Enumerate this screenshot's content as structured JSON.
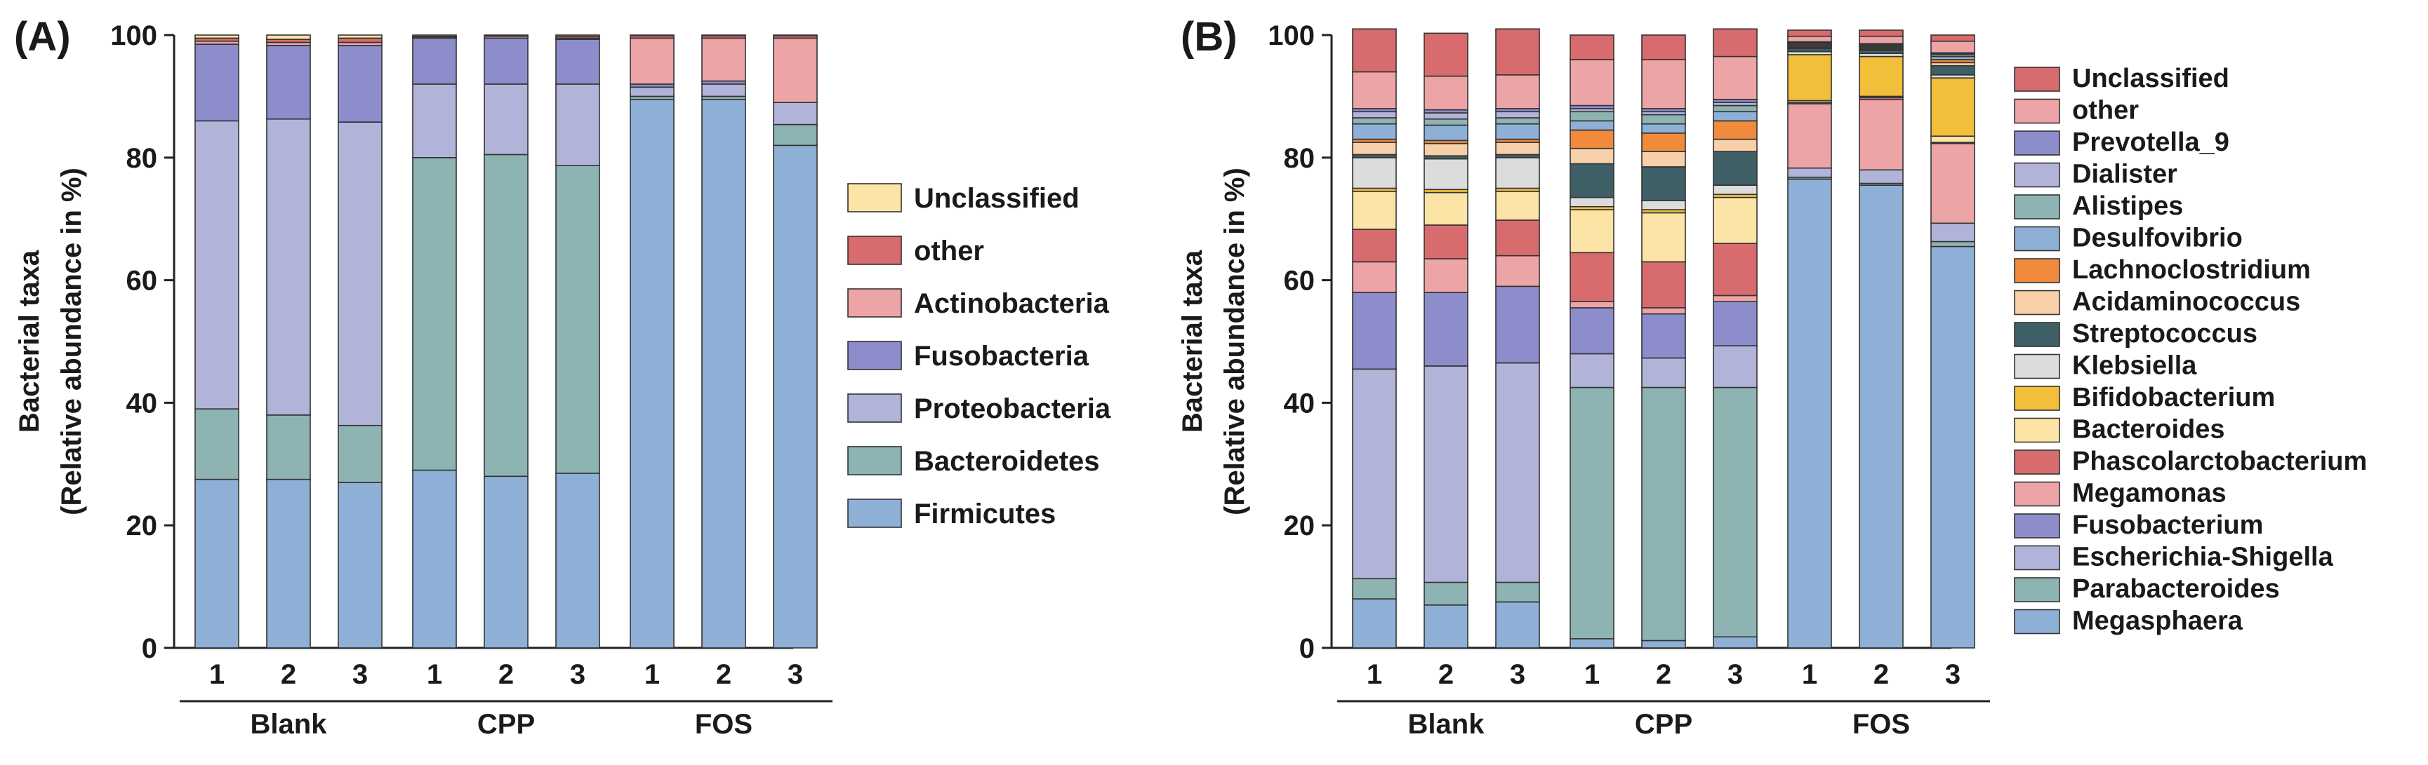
{
  "chart_data": [
    {
      "type": "bar",
      "stacked": true,
      "panel": "(A)",
      "ylabel": [
        "Bacterial taxa",
        "(Relative abundance in %)"
      ],
      "ylim": [
        0,
        100
      ],
      "yticks": [
        0,
        20,
        40,
        60,
        80,
        100
      ],
      "categories": [
        "1",
        "2",
        "3",
        "1",
        "2",
        "3",
        "1",
        "2",
        "3"
      ],
      "groups": [
        {
          "label": "Blank",
          "categories": [
            "1",
            "2",
            "3"
          ]
        },
        {
          "label": "CPP",
          "categories": [
            "1",
            "2",
            "3"
          ]
        },
        {
          "label": "FOS",
          "categories": [
            "1",
            "2",
            "3"
          ]
        }
      ],
      "series": [
        {
          "name": "Firmicutes",
          "color": "#8fb0d6",
          "values": [
            27.5,
            27.5,
            27,
            29,
            28,
            28.5,
            89.5,
            89.5,
            82
          ]
        },
        {
          "name": "Bacteroidetes",
          "color": "#8db4b3",
          "values": [
            11.5,
            10.5,
            9.3,
            51,
            52.5,
            50.2,
            0.5,
            0.5,
            3.4
          ]
        },
        {
          "name": "Proteobacteria",
          "color": "#b2b3d9",
          "values": [
            47,
            48.3,
            49.5,
            12,
            11.5,
            13.3,
            1.5,
            2,
            3.6
          ]
        },
        {
          "name": "Fusobacteria",
          "color": "#8d8dcc",
          "values": [
            12.5,
            12,
            12.5,
            7.5,
            7.5,
            7.3,
            0.5,
            0.5,
            0
          ]
        },
        {
          "name": "Actinobacteria",
          "color": "#eca4a6",
          "values": [
            0.5,
            0.5,
            0.5,
            0.2,
            0.3,
            0.2,
            7.5,
            7,
            10.5
          ]
        },
        {
          "name": "other",
          "color": "#d86b6d",
          "values": [
            0.5,
            0.5,
            0.7,
            0.1,
            0.1,
            0.3,
            0.4,
            0.4,
            0.4
          ]
        },
        {
          "name": "Unclassified",
          "color": "#fbe4a6",
          "values": [
            0.5,
            0.7,
            0.5,
            0.2,
            0.1,
            0.2,
            0.1,
            0.1,
            0.1
          ]
        }
      ]
    },
    {
      "type": "bar",
      "stacked": true,
      "panel": "(B)",
      "ylabel": [
        "Bacterial taxa",
        "(Relative abundance in %)"
      ],
      "ylim": [
        0,
        100
      ],
      "yticks": [
        0,
        20,
        40,
        60,
        80,
        100
      ],
      "categories": [
        "1",
        "2",
        "3",
        "1",
        "2",
        "3",
        "1",
        "2",
        "3"
      ],
      "groups": [
        {
          "label": "Blank",
          "categories": [
            "1",
            "2",
            "3"
          ]
        },
        {
          "label": "CPP",
          "categories": [
            "1",
            "2",
            "3"
          ]
        },
        {
          "label": "FOS",
          "categories": [
            "1",
            "2",
            "3"
          ]
        }
      ],
      "series": [
        {
          "name": "Megasphaera",
          "color": "#8fb0d6",
          "values": [
            8,
            7,
            7.5,
            1.5,
            1.2,
            1.8,
            76.5,
            75.5,
            65.5
          ]
        },
        {
          "name": "Parabacteroides",
          "color": "#8db4b3",
          "values": [
            3.3,
            3.7,
            3.2,
            41,
            41.3,
            40.7,
            0.3,
            0.3,
            0.8
          ]
        },
        {
          "name": "Escherichia-Shigella",
          "color": "#b2b3d9",
          "values": [
            34.2,
            35.3,
            35.8,
            5.5,
            4.8,
            6.8,
            1.5,
            2.2,
            3
          ]
        },
        {
          "name": "Fusobacterium",
          "color": "#8d8dcc",
          "values": [
            12.5,
            12,
            12.5,
            7.5,
            7.2,
            7.2,
            0,
            0,
            0
          ]
        },
        {
          "name": "Megamonas",
          "color": "#eca4a6",
          "values": [
            5,
            5.5,
            5,
            1,
            1,
            1,
            10.5,
            11.5,
            13
          ]
        },
        {
          "name": "Phascolarctobacterium",
          "color": "#d86b6d",
          "values": [
            5.3,
            5.5,
            5.8,
            8,
            7.5,
            8.5,
            0.2,
            0.3,
            0.2
          ]
        },
        {
          "name": "Bacteroides",
          "color": "#fbe4a6",
          "values": [
            6.2,
            5.3,
            4.7,
            7,
            8,
            7.5,
            0.3,
            0.2,
            1
          ]
        },
        {
          "name": "Bifidobacterium",
          "color": "#f2bf3a",
          "values": [
            0.5,
            0.5,
            0.5,
            0.5,
            0.5,
            0.5,
            7.5,
            6.5,
            9.5
          ]
        },
        {
          "name": "Klebsiella",
          "color": "#dcdcdc",
          "values": [
            5,
            5,
            5,
            1.5,
            1.5,
            1.5,
            0.5,
            0.5,
            0.5
          ]
        },
        {
          "name": "Streptococcus",
          "color": "#3e5f66",
          "values": [
            0.5,
            0.5,
            0.5,
            5.5,
            5.5,
            5.5,
            0.5,
            0.5,
            1.5
          ]
        },
        {
          "name": "Acidaminococcus",
          "color": "#f7cfa8",
          "values": [
            2,
            2,
            2,
            2.5,
            2.5,
            2,
            0.2,
            0.2,
            0.5
          ]
        },
        {
          "name": "Lachnoclostridium",
          "color": "#f08a3c",
          "values": [
            0.5,
            0.5,
            0.5,
            3,
            3,
            3,
            0.2,
            0.2,
            0.5
          ]
        },
        {
          "name": "Desulfovibrio",
          "color": "#8fb0d6",
          "values": [
            2.5,
            2.5,
            2.5,
            1.5,
            1.5,
            1.5,
            0.2,
            0.2,
            0.5
          ]
        },
        {
          "name": "Alistipes",
          "color": "#8db4b3",
          "values": [
            1,
            1,
            1,
            1.5,
            1.5,
            1,
            0.2,
            0.2,
            0.3
          ]
        },
        {
          "name": "Dialister",
          "color": "#b2b3d9",
          "values": [
            1,
            1,
            1,
            0.5,
            0.5,
            0.5,
            0.2,
            0.2,
            0.2
          ]
        },
        {
          "name": "Prevotella_9",
          "color": "#8d8dcc",
          "values": [
            0.5,
            0.5,
            0.5,
            0.5,
            0.5,
            0.5,
            0.1,
            0.1,
            0.1
          ]
        },
        {
          "name": "other",
          "color": "#eca4a6",
          "values": [
            6,
            5.5,
            5.5,
            7.5,
            8,
            7,
            0.9,
            1.2,
            1.9
          ]
        },
        {
          "name": "Unclassified",
          "color": "#d86b6d",
          "values": [
            7,
            7,
            7.5,
            4,
            4,
            4.5,
            1,
            1,
            1
          ]
        }
      ]
    }
  ]
}
